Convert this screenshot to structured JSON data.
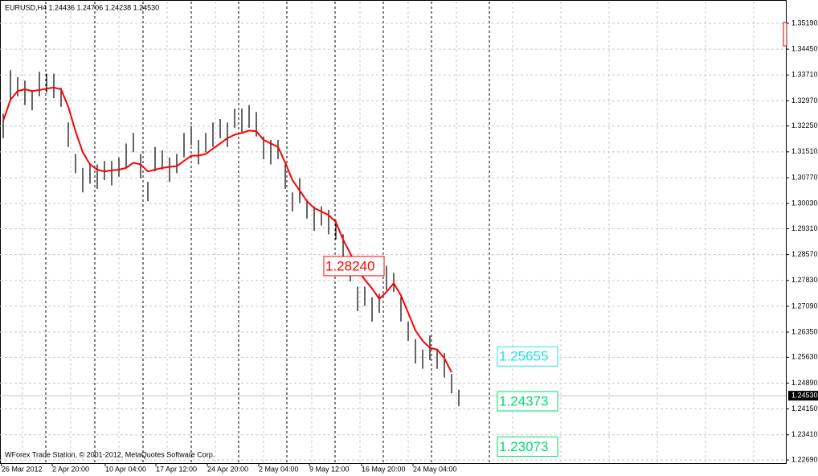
{
  "chart_data": {
    "type": "ohlc",
    "title": "EURUSD,H4  1.24436 1.24706 1.24238 1.24530",
    "footer": "WForex Trade Station, © 2001-2012, MetaQuotes Software Corp.",
    "x_labels": [
      "26 Mar 2012",
      "2 Apr 20:00",
      "10 Apr 04:00",
      "17 Apr 12:00",
      "24 Apr 20:00",
      "2 May 04:00",
      "9 May 12:00",
      "16 May 20:00",
      "24 May 04:00"
    ],
    "bar_color": "#000000",
    "high": [
      1.326,
      1.3385,
      1.3365,
      1.3355,
      1.3325,
      1.338,
      1.3375,
      1.3375,
      1.3335,
      1.3235,
      1.3145,
      1.3105,
      1.3115,
      1.3115,
      1.3125,
      1.3125,
      1.3135,
      1.3175,
      1.3205,
      1.3145,
      1.3065,
      1.3165,
      1.3155,
      1.3135,
      1.3145,
      1.3205,
      1.3225,
      1.3185,
      1.3205,
      1.3235,
      1.3245,
      1.3235,
      1.3275,
      1.3275,
      1.3285,
      1.3265,
      1.3195,
      1.3185,
      1.3185,
      1.3115,
      1.3035,
      1.3075,
      1.3015,
      1.2995,
      1.2995,
      1.2985,
      1.2955,
      1.2915,
      1.2835,
      1.2765,
      1.2765,
      1.2735,
      1.2745,
      1.2825,
      1.2805,
      1.2735,
      1.2665,
      1.2615,
      1.2585,
      1.2625,
      1.2585,
      1.2575,
      1.2515,
      1.247
    ],
    "low": [
      1.319,
      1.3295,
      1.331,
      1.3285,
      1.327,
      1.331,
      1.332,
      1.3305,
      1.328,
      1.3165,
      1.309,
      1.3035,
      1.306,
      1.3045,
      1.307,
      1.3055,
      1.308,
      1.3105,
      1.315,
      1.3075,
      1.301,
      1.3095,
      1.31,
      1.3065,
      1.309,
      1.3135,
      1.317,
      1.3115,
      1.315,
      1.3165,
      1.319,
      1.3165,
      1.322,
      1.3205,
      1.322,
      1.3195,
      1.313,
      1.3115,
      1.313,
      1.3045,
      1.298,
      1.3005,
      1.296,
      1.2925,
      1.294,
      1.2915,
      1.29,
      1.2845,
      1.278,
      1.2695,
      1.271,
      1.2665,
      1.269,
      1.2755,
      1.275,
      1.2665,
      1.261,
      1.2545,
      1.253,
      1.2555,
      1.253,
      1.2505,
      1.246,
      1.2423
    ],
    "ma": {
      "color": "#ff0000",
      "values": [
        1.324,
        1.33,
        1.3325,
        1.333,
        1.3325,
        1.3328,
        1.3332,
        1.3335,
        1.333,
        1.328,
        1.321,
        1.315,
        1.3115,
        1.31,
        1.3095,
        1.3098,
        1.31,
        1.3105,
        1.312,
        1.3115,
        1.3095,
        1.31,
        1.3105,
        1.3108,
        1.311,
        1.3125,
        1.314,
        1.314,
        1.3145,
        1.316,
        1.3175,
        1.319,
        1.32,
        1.3205,
        1.3212,
        1.321,
        1.3185,
        1.3175,
        1.3165,
        1.312,
        1.307,
        1.304,
        1.301,
        1.299,
        1.298,
        1.297,
        1.295,
        1.29,
        1.286,
        1.2815,
        1.2785,
        1.276,
        1.273,
        1.275,
        1.2775,
        1.274,
        1.269,
        1.264,
        1.261,
        1.259,
        1.2585,
        1.256,
        1.252,
        null
      ]
    },
    "annotations": [
      {
        "value": 1.2824,
        "label": "1.28240",
        "color": "#ff0000"
      },
      {
        "value": 1.25655,
        "label": "1.25655",
        "color": "#22e0e8"
      },
      {
        "value": 1.24373,
        "label": "1.24373",
        "color": "#00e070"
      },
      {
        "value": 1.23073,
        "label": "1.23073",
        "color": "#00e070"
      }
    ],
    "last_price": {
      "value": 1.2453,
      "label": "1.24530"
    },
    "ylim": [
      1.226,
      1.3581
    ],
    "yticks": [
      {
        "value": 1.3519,
        "label": "1.35190"
      },
      {
        "value": 1.3445,
        "label": "1.34450"
      },
      {
        "value": 1.3371,
        "label": "1.33710"
      },
      {
        "value": 1.3297,
        "label": "1.32970"
      },
      {
        "value": 1.3225,
        "label": "1.32250"
      },
      {
        "value": 1.3151,
        "label": "1.31510"
      },
      {
        "value": 1.3077,
        "label": "1.30770"
      },
      {
        "value": 1.3003,
        "label": "1.30030"
      },
      {
        "value": 1.2931,
        "label": "1.29310"
      },
      {
        "value": 1.2857,
        "label": "1.28570"
      },
      {
        "value": 1.2783,
        "label": "1.27830"
      },
      {
        "value": 1.2709,
        "label": "1.27090"
      },
      {
        "value": 1.2635,
        "label": "1.26350"
      },
      {
        "value": 1.2563,
        "label": "1.25630"
      },
      {
        "value": 1.2489,
        "label": "1.24890"
      },
      {
        "value": 1.2415,
        "label": "1.24150"
      },
      {
        "value": 1.2341,
        "label": "1.23410"
      },
      {
        "value": 1.2269,
        "label": "1.22690"
      }
    ],
    "grid": true
  }
}
